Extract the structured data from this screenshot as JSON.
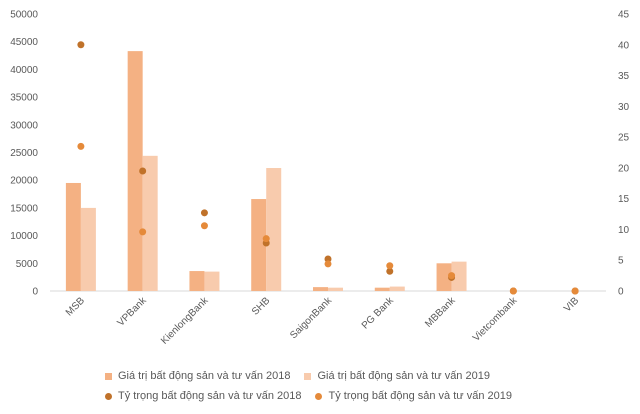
{
  "chart_data": {
    "type": "bar",
    "categories": [
      "MSB",
      "VPBank",
      "KienlongBank",
      "SHB",
      "SaigonBank",
      "PG Bank",
      "MBBank",
      "Vietcombank",
      "VIB"
    ],
    "series": [
      {
        "name": "Giá trị bất động sản và tư vấn 2018",
        "kind": "bar",
        "axis": "left",
        "color": "#F4B183",
        "values": [
          19500,
          43300,
          3600,
          16600,
          700,
          600,
          5000,
          0,
          0
        ]
      },
      {
        "name": "Giá trị bất động sản và tư vấn 2019",
        "kind": "bar",
        "axis": "left",
        "color": "#F8CBAD",
        "values": [
          15000,
          24400,
          3500,
          22200,
          600,
          800,
          5300,
          0,
          0
        ]
      },
      {
        "name": "Tỷ trọng bất động sản và tư vấn 2018",
        "kind": "scatter",
        "axis": "right",
        "color": "#C0722A",
        "values": [
          40,
          19.5,
          12.7,
          7.8,
          5.2,
          3.2,
          2.2,
          0,
          0
        ]
      },
      {
        "name": "Tỷ trọng bất động sản và tư vấn 2019",
        "kind": "scatter",
        "axis": "right",
        "color": "#E58A3A",
        "values": [
          23.5,
          9.6,
          10.6,
          8.5,
          4.4,
          4.1,
          2.5,
          0,
          0
        ]
      }
    ],
    "ylim": [
      0,
      50000
    ],
    "yticks": [
      "0",
      "5000",
      "10000",
      "15000",
      "20000",
      "25000",
      "30000",
      "35000",
      "40000",
      "45000",
      "50000"
    ],
    "y2lim": [
      0,
      45
    ],
    "y2ticks": [
      "0",
      "5",
      "10",
      "15",
      "20",
      "25",
      "30",
      "35",
      "40",
      "45"
    ],
    "grid": false,
    "legend_position": "bottom"
  }
}
